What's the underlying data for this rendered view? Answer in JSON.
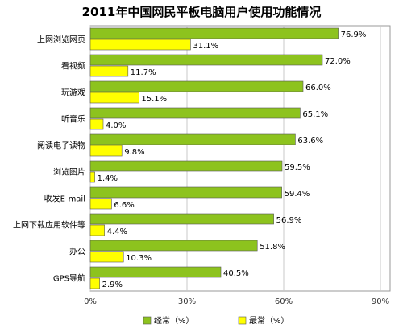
{
  "chart_data": {
    "type": "bar",
    "orientation": "horizontal",
    "title": "2011年中国网民平板电脑用户使用功能情况",
    "categories": [
      "上网浏览网页",
      "看视频",
      "玩游戏",
      "听音乐",
      "阅读电子读物",
      "浏览图片",
      "收发E-mail",
      "上网下载应用软件等",
      "办公",
      "GPS导航"
    ],
    "series": [
      {
        "name": "经常（%）",
        "color": "#8dc31e",
        "values": [
          76.9,
          72.0,
          66.0,
          65.1,
          63.6,
          59.5,
          59.4,
          56.9,
          51.8,
          40.5
        ],
        "labels": [
          "76.9%",
          "72.0%",
          "66.0%",
          "65.1%",
          "63.6%",
          "59.5%",
          "59.4%",
          "56.9%",
          "51.8%",
          "40.5%"
        ]
      },
      {
        "name": "最常（%）",
        "color": "#ffff00",
        "values": [
          31.1,
          11.7,
          15.1,
          4.0,
          9.8,
          1.4,
          6.6,
          4.4,
          10.3,
          2.9
        ],
        "labels": [
          "31.1%",
          "11.7%",
          "15.1%",
          "4.0%",
          "9.8%",
          "1.4%",
          "6.6%",
          "4.4%",
          "10.3%",
          "2.9%"
        ]
      }
    ],
    "xlim": [
      0,
      90
    ],
    "xticks": [
      0,
      30,
      60,
      90
    ],
    "xtick_labels": [
      "0%",
      "30%",
      "60%",
      "90%"
    ],
    "grid": true,
    "legend_position": "bottom"
  }
}
